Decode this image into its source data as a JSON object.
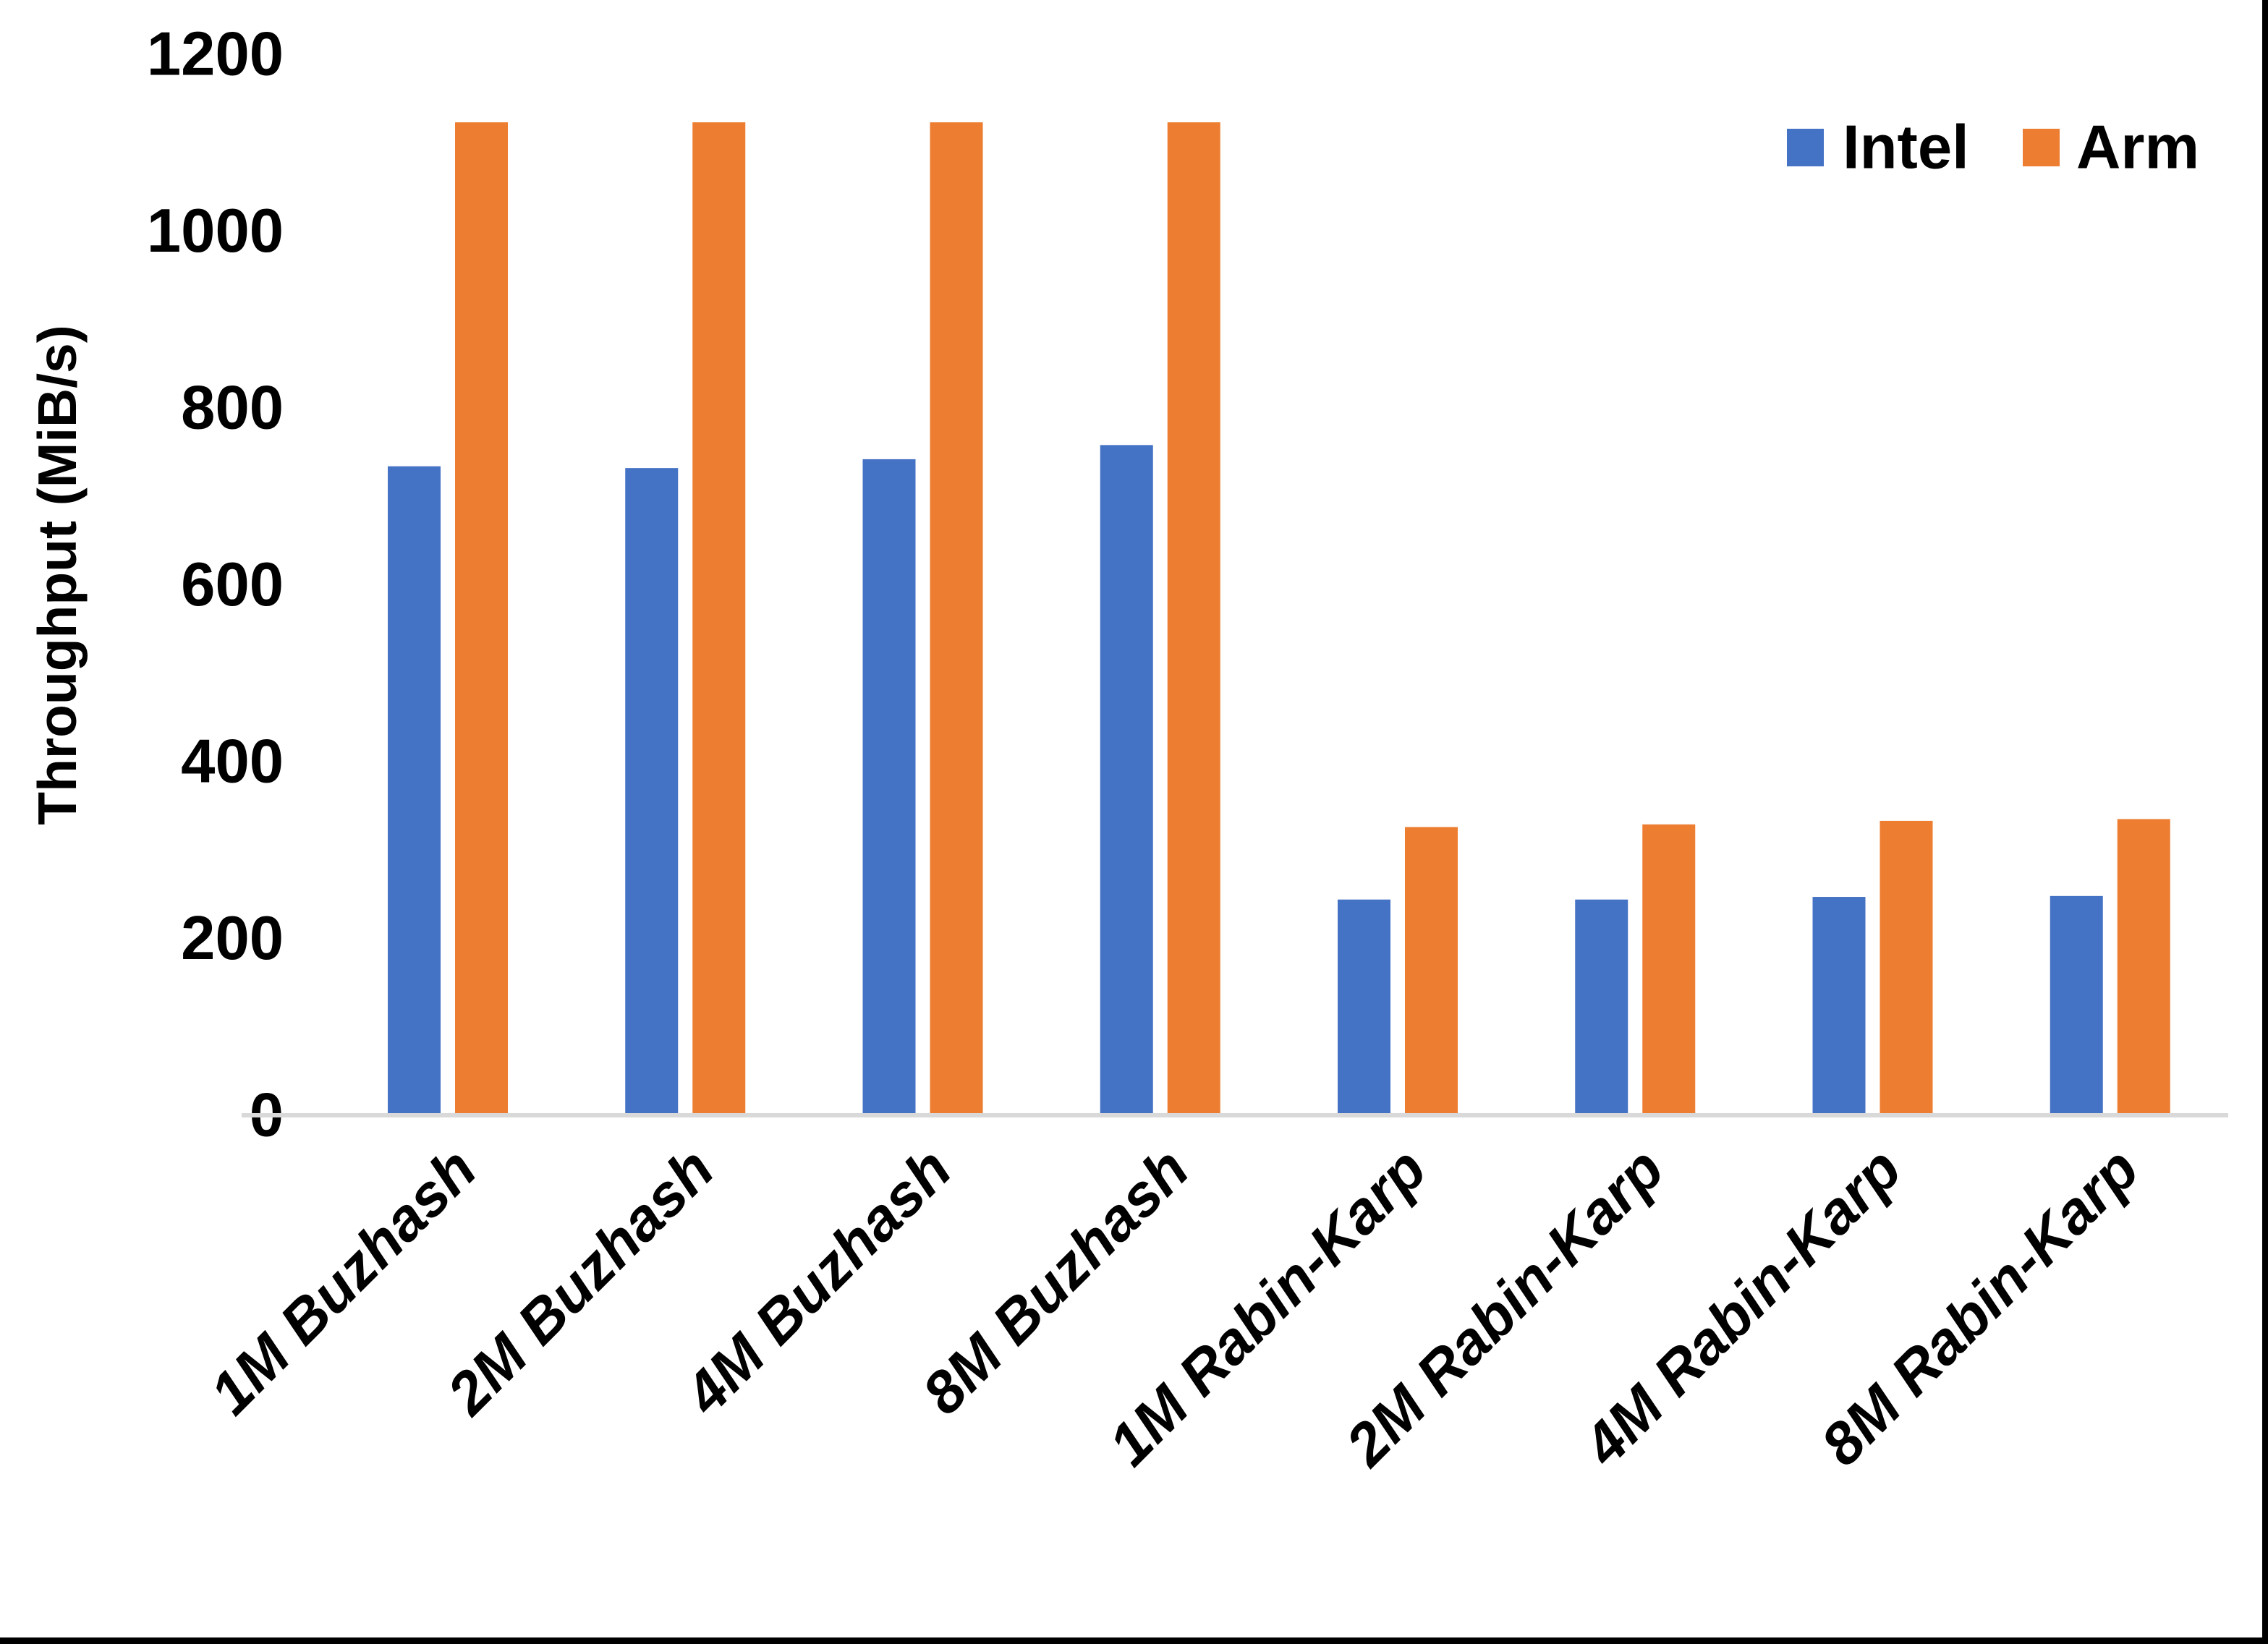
{
  "chart_data": {
    "type": "bar",
    "title": "",
    "ylabel": "Throughput (MiB/s)",
    "xlabel": "",
    "ylim": [
      0,
      1200
    ],
    "ytick_step": 200,
    "ytick_labels": [
      "0",
      "200",
      "400",
      "600",
      "800",
      "1000",
      "1200"
    ],
    "grid": false,
    "legend_position": "top-right",
    "categories": [
      "1M Buzhash",
      "2M Buzhash",
      "4M Buzhash",
      "8M Buzhash",
      "1M Rabin-Karp",
      "2M Rabin-Karp",
      "4M Rabin-Karp",
      "8M Rabin-Karp"
    ],
    "series": [
      {
        "name": "Intel",
        "color": "#4472C4",
        "values": [
          734,
          732,
          742,
          758,
          244,
          244,
          247,
          248
        ]
      },
      {
        "name": "Arm",
        "color": "#ED7D31",
        "values": [
          1123,
          1123,
          1123,
          1123,
          326,
          329,
          333,
          335
        ]
      }
    ]
  },
  "colors": {
    "axis_line": "#D9D9D9",
    "text": "#000000",
    "background": "#FFFFFF",
    "page_border": "#000000"
  }
}
